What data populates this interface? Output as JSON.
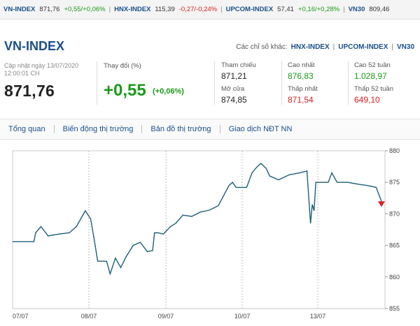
{
  "ticker": [
    {
      "name": "VN-INDEX",
      "value": "871,76",
      "change": "+0,55/+0,06%",
      "dir": "up"
    },
    {
      "name": "HNX-INDEX",
      "value": "115,39",
      "change": "-0,27/-0,24%",
      "dir": "dn"
    },
    {
      "name": "UPCOM-INDEX",
      "value": "57,41",
      "change": "+0,16/+0,28%",
      "dir": "up"
    },
    {
      "name": "VN30",
      "value": "809,46",
      "change": "",
      "dir": "up"
    }
  ],
  "header": {
    "title": "VN-INDEX",
    "others_label": "Các chỉ số khác:",
    "others": [
      "HNX-INDEX",
      "UPCOM-INDEX",
      "VN30"
    ]
  },
  "summary": {
    "updated_label": "Cập nhật ngày 13/07/2020",
    "updated_time": "12:00:01 CH",
    "price": "871,76",
    "change_label": "Thay đổi (%)",
    "change_value": "+0,55",
    "change_pct": "(+0,06%)",
    "ref_label": "Tham chiếu",
    "ref_value": "871,21",
    "open_label": "Mở cửa",
    "open_value": "874,85",
    "high_label": "Cao nhất",
    "high_value": "876,83",
    "low_label": "Thấp nhất",
    "low_value": "871,54",
    "high52_label": "Cao 52 tuần",
    "high52_value": "1.028,97",
    "low52_label": "Thấp 52 tuần",
    "low52_value": "649,10"
  },
  "tabs": [
    "Tổng quan",
    "Biến động thị trường",
    "Bản đồ thị trường",
    "Giao dịch NĐT NN"
  ],
  "colors": {
    "up": "#1a9a1a",
    "down": "#d62020",
    "line": "#1d5f7a",
    "brand": "#1a4f8a"
  },
  "chart_data": {
    "type": "line",
    "x_labels": [
      "07/07",
      "08/07",
      "09/07",
      "10/07",
      "13/07"
    ],
    "y_ticks": [
      855,
      860,
      865,
      870,
      875,
      880
    ],
    "ylim": [
      855,
      880
    ],
    "grid": "vertical dashed at day boundaries",
    "series": [
      {
        "values": [
          [
            0,
            865.6
          ],
          [
            1.2,
            865.6
          ],
          [
            1.3,
            867.0
          ],
          [
            1.6,
            868.0
          ],
          [
            2.0,
            866.5
          ],
          [
            2.6,
            866.8
          ],
          [
            3.2,
            867.0
          ],
          [
            3.6,
            868.0
          ],
          [
            3.9,
            869.5
          ],
          [
            4.1,
            870.5
          ],
          [
            4.4,
            869.2
          ],
          [
            4.6,
            866.0
          ],
          [
            4.8,
            862.5
          ],
          [
            5.3,
            862.5
          ],
          [
            5.5,
            860.5
          ],
          [
            5.8,
            863.0
          ],
          [
            6.1,
            861.5
          ],
          [
            6.4,
            863.2
          ],
          [
            6.8,
            865.0
          ],
          [
            7.2,
            865.5
          ],
          [
            7.6,
            864.0
          ],
          [
            7.9,
            864.2
          ],
          [
            8.0,
            867.0
          ],
          [
            8.2,
            867.0
          ],
          [
            8.5,
            866.8
          ],
          [
            8.9,
            868.0
          ],
          [
            9.2,
            868.5
          ],
          [
            9.6,
            869.8
          ],
          [
            10.1,
            869.6
          ],
          [
            10.6,
            870.3
          ],
          [
            11.1,
            870.6
          ],
          [
            11.6,
            871.3
          ],
          [
            12.2,
            874.5
          ],
          [
            12.4,
            875.0
          ],
          [
            12.6,
            874.2
          ],
          [
            13.2,
            874.2
          ],
          [
            13.5,
            876.5
          ],
          [
            13.8,
            877.5
          ],
          [
            14.0,
            878.0
          ],
          [
            14.3,
            877.2
          ],
          [
            14.5,
            876.0
          ],
          [
            15.0,
            875.4
          ],
          [
            15.6,
            876.2
          ],
          [
            16.2,
            876.5
          ],
          [
            16.6,
            876.8
          ],
          [
            16.8,
            868.5
          ],
          [
            16.9,
            871.5
          ],
          [
            17.0,
            870.5
          ],
          [
            17.1,
            875.0
          ],
          [
            17.8,
            875.0
          ],
          [
            18.0,
            876.5
          ],
          [
            18.3,
            875.0
          ],
          [
            18.9,
            875.0
          ],
          [
            19.5,
            874.7
          ],
          [
            20.0,
            874.5
          ],
          [
            20.5,
            874.2
          ],
          [
            20.8,
            872.0
          ]
        ]
      }
    ]
  }
}
